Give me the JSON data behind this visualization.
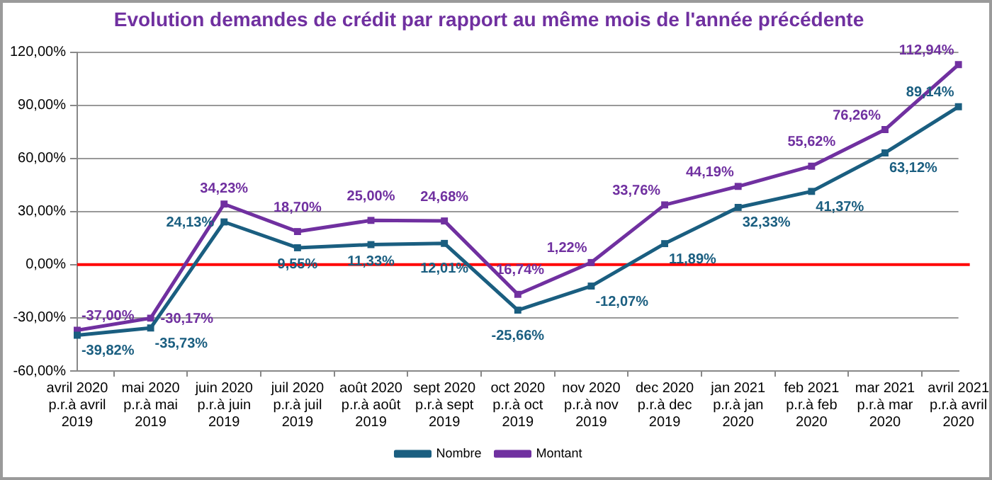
{
  "chart_data": {
    "type": "line",
    "title": "Evolution demandes de crédit par rapport au même mois de l'année précédente",
    "categories": [
      "avril 2020\np.r.à avril\n2019",
      "mai 2020\np.r.à mai\n2019",
      "juin 2020\np.r.à juin\n2019",
      "juil 2020\np.r.à juil\n2019",
      "août 2020\np.r.à août\n2019",
      "sept 2020\np.r.à sept\n2019",
      "oct 2020\np.r.à oct\n2019",
      "nov 2020\np.r.à nov\n2019",
      "dec 2020\np.r.à dec\n2019",
      "jan 2021\np.r.à jan\n2020",
      "feb 2021\np.r.à feb\n2020",
      "mar 2021\np.r.à mar\n2020",
      "avril 2021\np.r.à avril\n2020"
    ],
    "series": [
      {
        "name": "Nombre",
        "color": "#1a5e80",
        "values": [
          -39.82,
          -35.73,
          24.13,
          9.55,
          11.33,
          12.01,
          -25.66,
          -12.07,
          11.89,
          32.33,
          41.37,
          63.12,
          89.14
        ],
        "value_labels": [
          "-39,82%",
          "-35,73%",
          "24,13%",
          "9,55%",
          "11,33%",
          "12,01%",
          "-25,66%",
          "-12,07%",
          "11,89%",
          "32,33%",
          "41,37%",
          "63,12%",
          "89,14%"
        ]
      },
      {
        "name": "Montant",
        "color": "#7030a0",
        "values": [
          -37.0,
          -30.17,
          34.23,
          18.7,
          25.0,
          24.68,
          -16.74,
          1.22,
          33.76,
          44.19,
          55.62,
          76.26,
          112.94
        ],
        "value_labels": [
          "-37,00%",
          "-30,17%",
          "34,23%",
          "18,70%",
          "25,00%",
          "24,68%",
          "-16,74%",
          "1,22%",
          "33,76%",
          "44,19%",
          "55,62%",
          "76,26%",
          "112,94%"
        ]
      }
    ],
    "ylim": [
      -60,
      120
    ],
    "yticks": [
      {
        "value": -60,
        "label": "-60,00%"
      },
      {
        "value": -30,
        "label": "-30,00%"
      },
      {
        "value": 0,
        "label": "0,00%"
      },
      {
        "value": 30,
        "label": "30,00%"
      },
      {
        "value": 60,
        "label": "60,00%"
      },
      {
        "value": 90,
        "label": "90,00%"
      },
      {
        "value": 120,
        "label": "120,00%"
      }
    ],
    "ref_lines": [
      {
        "axis": "y",
        "value": 0,
        "color": "#ff0000"
      }
    ],
    "grid": "y",
    "legend": "bottom",
    "marker": "square",
    "line_style": "solid"
  }
}
